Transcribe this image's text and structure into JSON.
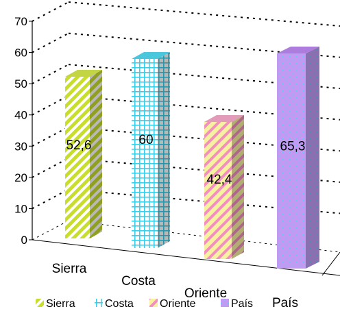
{
  "chart_data": {
    "type": "bar",
    "categories": [
      "Sierra",
      "Costa",
      "Oriente",
      "País"
    ],
    "values": [
      52.6,
      60,
      42.4,
      65.3
    ],
    "value_labels": [
      "52,6",
      "60",
      "42,4",
      "65,3"
    ],
    "ylim": [
      0,
      70
    ],
    "yticks": [
      "0",
      "10",
      "20",
      "30",
      "40",
      "50",
      "60",
      "70"
    ],
    "grid": true,
    "legend_position": "bottom",
    "legend": [
      "Sierra",
      "Costa",
      "Oriente",
      "País"
    ],
    "colors": [
      "#d4e84a",
      "#4fd8f0",
      "#f6a8c8",
      "#bb88f0"
    ]
  }
}
